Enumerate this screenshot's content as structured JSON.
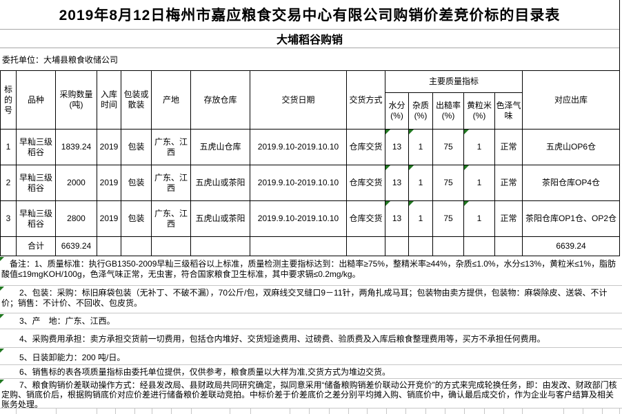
{
  "title": "2019年8月12日梅州市嘉应粮食交易中心有限公司购销价差竞价标的目录表",
  "subtitle": "大埔稻谷购销",
  "client": "委托单位：大埔县粮食收储公司",
  "table": {
    "col_headers": {
      "no": "标的号",
      "variety": "品种",
      "quantity": "采购数量(吨)",
      "storage_time": "入库时间",
      "packing": "包装或散装",
      "origin": "产地",
      "warehouse": "存放仓库",
      "delivery_date": "交货日期",
      "delivery_method": "交货方式",
      "quality_group": "主要质量指标",
      "moisture": "水分(%)",
      "impurity": "杂质(%)",
      "brown_rice_rate": "出糙率(%)",
      "yellow_grain": "黄粒米(%)",
      "color_odor": "色泽气味",
      "out_warehouse": "对应出库"
    },
    "rows": [
      {
        "no": "1",
        "variety": "早籼三级稻谷",
        "quantity": "1839.24",
        "storage_time": "2019",
        "packing": "包装",
        "origin": "广东、江西",
        "warehouse": "五虎山仓库",
        "delivery_date": "2019.9.10-2019.10.10",
        "delivery_method": "仓库交货",
        "moisture": "13",
        "impurity": "1",
        "brown_rice_rate": "75",
        "yellow_grain": "1",
        "color_odor": "正常",
        "out_warehouse": "五虎山OP6仓"
      },
      {
        "no": "2",
        "variety": "早籼三级稻谷",
        "quantity": "2000",
        "storage_time": "2019",
        "packing": "包装",
        "origin": "广东、江西",
        "warehouse": "五虎山或茶阳",
        "delivery_date": "2019.9.10-2019.10.10",
        "delivery_method": "仓库交货",
        "moisture": "13",
        "impurity": "1",
        "brown_rice_rate": "75",
        "yellow_grain": "1",
        "color_odor": "正常",
        "out_warehouse": "茶阳仓库OP4仓"
      },
      {
        "no": "3",
        "variety": "早籼三级稻谷",
        "quantity": "2800",
        "storage_time": "2019",
        "packing": "包装",
        "origin": "广东、江西",
        "warehouse": "五虎山或茶阳",
        "delivery_date": "2019.9.10-2019.10.10",
        "delivery_method": "仓库交货",
        "moisture": "13",
        "impurity": "1",
        "brown_rice_rate": "75",
        "yellow_grain": "1",
        "color_odor": "正常",
        "out_warehouse": "茶阳仓库OP1仓、OP2仓"
      }
    ],
    "total_row": {
      "label": "合计",
      "quantity": "6639.24",
      "out_warehouse": "6639.24"
    }
  },
  "notes": [
    "备注：1、质量标准：执行GB1350-2009早籼三级稻谷以上标准，质量检测主要指标达到：出糙率≥75%，整精米率≥44%，杂质≤1.0%，水分≤13%，黄粒米≤1%，脂肪酸值≤19mgKOH/100g，色泽气味正常，无虫害，符合国家粮食卫生标准，其中要求镉≤0.2mg/kg。",
    "2、包装：采购：标旧麻袋包装（无补丁、不破不漏），70公斤/包，双麻线交叉缝口9－11针，两角扎成马耳；包装物由卖方提供，包装物：麻袋除皮、送袋、不计价；销售：不计价、不回收、包皮货。",
    "3、产　地：广东、江西。",
    "4、采购费用承担：卖方承担交货前一切费用，包括仓内堆好、交货短途费用、过磅费、验质费及入库后粮食整理费用等，买方不承担任何费用。",
    "5、日装卸能力：200 吨/日。",
    "6、销售标的表各项质量指标由委托单位提供，仅供参考，粮食质量以大样为准,交货方式为堆边交货。",
    "7、粮食购销价差联动操作方式：经县发改局、县财政局共同研究确定，拟同意采用“储备粮购销差价联动公开竞价”的方式来完成轮换任务，即：由发改、财政部门核定购、销底价后，根据购销底价对应价差进行储备粮价差联动竞拍。中标价差于价差底价之差分别平均摊入购、销底价中，确认最后成交价，作为企业与客户结算及相关账务处理。"
  ],
  "colors": {
    "flag_green": "#217821",
    "table_border": "#000000",
    "section_rule": "#a6a6a6",
    "note_rule": "#c6c6c6"
  }
}
